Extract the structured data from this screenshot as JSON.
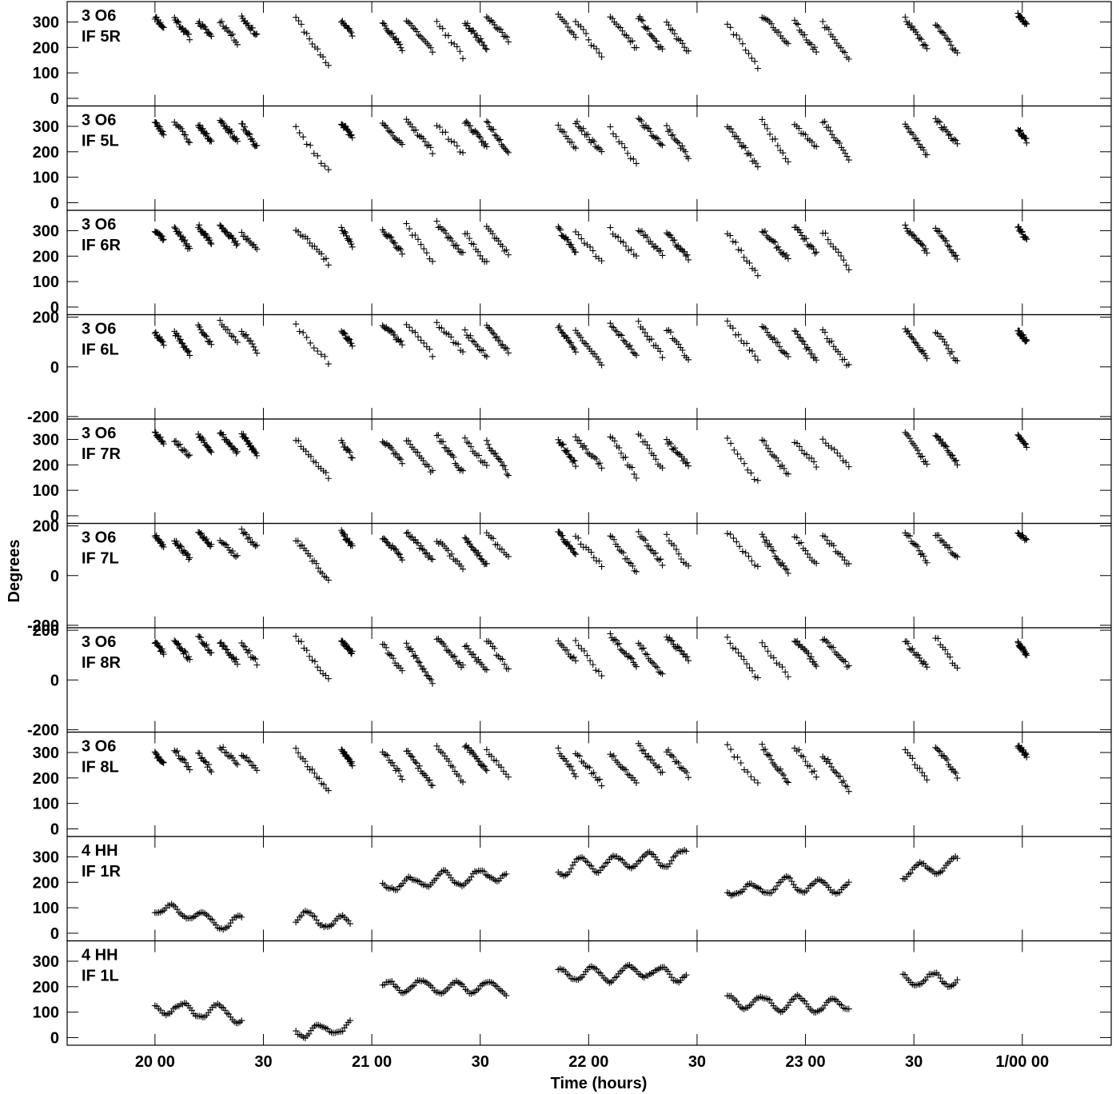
{
  "chart_data": {
    "type": "scatter",
    "marker": "+",
    "color": "#000000",
    "xlabel": "Time (hours)",
    "ylabel": "Degrees",
    "x_unit": "hours",
    "xlim": [
      19.595,
      24.41
    ],
    "x_ticks": [
      {
        "value": 20.0,
        "label": "20 00"
      },
      {
        "value": 20.5,
        "label": "30"
      },
      {
        "value": 21.0,
        "label": "21 00"
      },
      {
        "value": 21.5,
        "label": "30"
      },
      {
        "value": 22.0,
        "label": "22 00"
      },
      {
        "value": 22.5,
        "label": "30"
      },
      {
        "value": 23.0,
        "label": "23 00"
      },
      {
        "value": 23.5,
        "label": "30"
      },
      {
        "value": 24.0,
        "label": "1/00 00"
      }
    ],
    "panels": [
      {
        "line1": "3 O6",
        "line2": "IF 5R",
        "ylim": [
          -30,
          380
        ],
        "y_ticks": [
          0,
          100,
          200,
          300
        ],
        "y_labels": [
          "0",
          "100",
          "200",
          "300"
        ],
        "seed": 11
      },
      {
        "line1": "3 O6",
        "line2": "IF 5L",
        "ylim": [
          -30,
          380
        ],
        "y_ticks": [
          0,
          100,
          200,
          300
        ],
        "y_labels": [
          "0",
          "100",
          "200",
          "300"
        ],
        "seed": 23
      },
      {
        "line1": "3 O6",
        "line2": "IF 6R",
        "ylim": [
          -30,
          380
        ],
        "y_ticks": [
          0,
          100,
          200,
          300
        ],
        "y_labels": [
          "0",
          "100",
          "200",
          "300"
        ],
        "seed": 37
      },
      {
        "line1": "3 O6",
        "line2": "IF 6L",
        "ylim": [
          -210,
          210
        ],
        "y_ticks": [
          -200,
          0,
          200
        ],
        "y_labels": [
          "-200",
          "0",
          "200"
        ],
        "seed": 41
      },
      {
        "line1": "3 O6",
        "line2": "IF 7R",
        "ylim": [
          -30,
          380
        ],
        "y_ticks": [
          0,
          100,
          200,
          300
        ],
        "y_labels": [
          "0",
          "100",
          "200",
          "300"
        ],
        "seed": 53
      },
      {
        "line1": "3 O6",
        "line2": "IF 7L",
        "ylim": [
          -210,
          210
        ],
        "y_ticks": [
          -200,
          0,
          200
        ],
        "y_labels": [
          "-200",
          "0",
          "200"
        ],
        "seed": 67
      },
      {
        "line1": "3 O6",
        "line2": "IF 8R",
        "ylim": [
          -210,
          210
        ],
        "y_ticks": [
          -200,
          0,
          200
        ],
        "y_labels": [
          "-200",
          "0",
          "200"
        ],
        "seed": 71
      },
      {
        "line1": "3 O6",
        "line2": "IF 8L",
        "ylim": [
          -30,
          380
        ],
        "y_ticks": [
          0,
          100,
          200,
          300
        ],
        "y_labels": [
          "0",
          "100",
          "200",
          "300"
        ],
        "seed": 83
      },
      {
        "line1": "4 HH",
        "line2": "IF 1R",
        "ylim": [
          -30,
          380
        ],
        "y_ticks": [
          0,
          100,
          200,
          300
        ],
        "y_labels": [
          "0",
          "100",
          "200",
          "300"
        ],
        "seed": 97
      },
      {
        "line1": "4 HH",
        "line2": "IF 1L",
        "ylim": [
          -30,
          380
        ],
        "y_ticks": [
          0,
          100,
          200,
          300
        ],
        "y_labels": [
          "0",
          "100",
          "200",
          "300"
        ],
        "seed": 101
      }
    ],
    "o6_scans": [
      {
        "start": 20.0,
        "end": 20.04
      },
      {
        "start": 20.09,
        "end": 20.16
      },
      {
        "start": 20.2,
        "end": 20.26
      },
      {
        "start": 20.3,
        "end": 20.38
      },
      {
        "start": 20.4,
        "end": 20.47
      },
      {
        "start": 20.65,
        "end": 20.8
      },
      {
        "start": 20.86,
        "end": 20.91
      },
      {
        "start": 21.05,
        "end": 21.14
      },
      {
        "start": 21.16,
        "end": 21.28
      },
      {
        "start": 21.3,
        "end": 21.42
      },
      {
        "start": 21.43,
        "end": 21.53
      },
      {
        "start": 21.53,
        "end": 21.63
      },
      {
        "start": 21.86,
        "end": 21.94
      },
      {
        "start": 21.94,
        "end": 22.06
      },
      {
        "start": 22.1,
        "end": 22.22
      },
      {
        "start": 22.23,
        "end": 22.34
      },
      {
        "start": 22.36,
        "end": 22.46
      },
      {
        "start": 22.64,
        "end": 22.78
      },
      {
        "start": 22.8,
        "end": 22.92
      },
      {
        "start": 22.95,
        "end": 23.05
      },
      {
        "start": 23.08,
        "end": 23.2
      },
      {
        "start": 23.46,
        "end": 23.56
      },
      {
        "start": 23.6,
        "end": 23.7
      },
      {
        "start": 23.98,
        "end": 24.02
      }
    ],
    "hh_scans": [
      {
        "start": 20.0,
        "end": 20.4,
        "level": 120
      },
      {
        "start": 20.65,
        "end": 20.9,
        "level": 40
      },
      {
        "start": 21.05,
        "end": 21.62,
        "level": 180
      },
      {
        "start": 21.86,
        "end": 22.45,
        "level": 250
      },
      {
        "start": 22.64,
        "end": 23.2,
        "level": 160
      },
      {
        "start": 23.45,
        "end": 23.7,
        "level": 250
      }
    ]
  }
}
